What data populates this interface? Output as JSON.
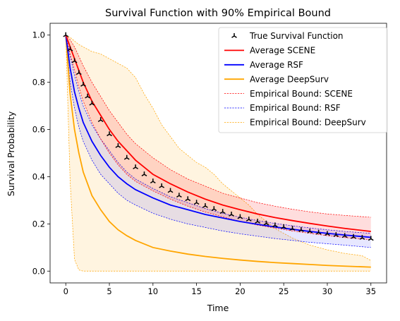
{
  "chart_data": {
    "type": "line",
    "title": "Survival Function with 90% Empirical Bound",
    "xlabel": "Time",
    "ylabel": "Survival Probability",
    "xlim": [
      -1.8,
      36.8
    ],
    "ylim": [
      -0.05,
      1.05
    ],
    "xticks": [
      0,
      5,
      10,
      15,
      20,
      25,
      30,
      35
    ],
    "yticks": [
      0.0,
      0.2,
      0.4,
      0.6,
      0.8,
      1.0
    ],
    "grid": false,
    "legend_position": "top-right",
    "legend": [
      "True Survival Function",
      "Average SCENE",
      "Average RSF",
      "Average DeepSurv",
      "Empirical Bound: SCENE",
      "Empirical Bound: RSF",
      "Empirical Bound: DeepSurv"
    ],
    "series": [
      {
        "name": "True Survival Function",
        "style": "markers",
        "color": "#000000",
        "x": [
          0,
          0.5,
          1,
          1.5,
          2,
          2.5,
          3,
          4,
          5,
          6,
          7,
          8,
          9,
          10,
          11,
          12,
          13,
          14,
          15,
          16,
          17,
          18,
          19,
          20,
          21,
          22,
          23,
          24,
          25,
          26,
          27,
          28,
          29,
          30,
          31,
          32,
          33,
          34,
          35
        ],
        "y": [
          1.0,
          0.94,
          0.89,
          0.84,
          0.79,
          0.74,
          0.71,
          0.64,
          0.58,
          0.53,
          0.48,
          0.44,
          0.41,
          0.38,
          0.36,
          0.34,
          0.32,
          0.305,
          0.29,
          0.276,
          0.263,
          0.251,
          0.24,
          0.229,
          0.219,
          0.21,
          0.202,
          0.194,
          0.187,
          0.18,
          0.174,
          0.168,
          0.163,
          0.158,
          0.153,
          0.149,
          0.145,
          0.141,
          0.137
        ]
      },
      {
        "name": "Average SCENE",
        "style": "line",
        "color": "#ff0000",
        "x": [
          0,
          0.5,
          1,
          1.5,
          2,
          2.5,
          3,
          4,
          5,
          6,
          7,
          8,
          9,
          10,
          12,
          14,
          16,
          18,
          20,
          22,
          24,
          26,
          28,
          30,
          32,
          35
        ],
        "y": [
          1.0,
          0.95,
          0.9,
          0.85,
          0.8,
          0.76,
          0.72,
          0.66,
          0.6,
          0.55,
          0.51,
          0.47,
          0.44,
          0.41,
          0.37,
          0.335,
          0.305,
          0.28,
          0.26,
          0.242,
          0.227,
          0.214,
          0.202,
          0.191,
          0.181,
          0.168
        ]
      },
      {
        "name": "Average RSF",
        "style": "line",
        "color": "#0000ff",
        "x": [
          0,
          0.5,
          1,
          1.5,
          2,
          3,
          4,
          5,
          6,
          7,
          8,
          10,
          12,
          14,
          16,
          18,
          20,
          22,
          24,
          26,
          28,
          30,
          32,
          35
        ],
        "y": [
          1.0,
          0.86,
          0.76,
          0.69,
          0.63,
          0.55,
          0.49,
          0.44,
          0.4,
          0.37,
          0.345,
          0.31,
          0.28,
          0.26,
          0.24,
          0.225,
          0.21,
          0.198,
          0.187,
          0.177,
          0.168,
          0.16,
          0.153,
          0.143
        ]
      },
      {
        "name": "Average DeepSurv",
        "style": "line",
        "color": "#ffa500",
        "x": [
          0,
          0.5,
          1,
          1.5,
          2,
          3,
          4,
          5,
          6,
          7,
          8,
          10,
          12,
          14,
          16,
          18,
          20,
          22,
          24,
          26,
          28,
          30,
          32,
          35
        ],
        "y": [
          1.0,
          0.75,
          0.6,
          0.5,
          0.42,
          0.32,
          0.26,
          0.21,
          0.175,
          0.15,
          0.13,
          0.1,
          0.085,
          0.072,
          0.062,
          0.054,
          0.047,
          0.041,
          0.036,
          0.032,
          0.028,
          0.024,
          0.021,
          0.017
        ]
      }
    ],
    "bounds": [
      {
        "name": "Empirical Bound: SCENE",
        "color": "#ff0000",
        "fill": "#ff000022",
        "x": [
          0,
          0.5,
          1,
          1.5,
          2,
          3,
          4,
          5,
          6,
          7,
          8,
          10,
          12,
          14,
          16,
          18,
          20,
          22,
          24,
          26,
          28,
          30,
          32,
          35
        ],
        "upper": [
          1.0,
          0.98,
          0.95,
          0.91,
          0.87,
          0.8,
          0.74,
          0.68,
          0.63,
          0.58,
          0.54,
          0.48,
          0.43,
          0.39,
          0.36,
          0.33,
          0.31,
          0.29,
          0.275,
          0.262,
          0.251,
          0.242,
          0.236,
          0.228
        ],
        "lower": [
          1.0,
          0.92,
          0.85,
          0.78,
          0.72,
          0.63,
          0.56,
          0.5,
          0.45,
          0.41,
          0.38,
          0.34,
          0.305,
          0.275,
          0.25,
          0.23,
          0.21,
          0.195,
          0.182,
          0.17,
          0.16,
          0.15,
          0.142,
          0.133
        ]
      },
      {
        "name": "Empirical Bound: RSF",
        "color": "#0000ff",
        "fill": "#0000ff18",
        "x": [
          0,
          0.5,
          1,
          1.5,
          2,
          3,
          4,
          5,
          6,
          7,
          8,
          10,
          12,
          14,
          16,
          18,
          20,
          22,
          24,
          26,
          28,
          30,
          32,
          35
        ],
        "upper": [
          1.0,
          0.91,
          0.83,
          0.76,
          0.7,
          0.62,
          0.56,
          0.51,
          0.46,
          0.42,
          0.39,
          0.35,
          0.315,
          0.29,
          0.265,
          0.245,
          0.228,
          0.214,
          0.202,
          0.192,
          0.183,
          0.175,
          0.168,
          0.16
        ],
        "lower": [
          1.0,
          0.8,
          0.69,
          0.61,
          0.55,
          0.47,
          0.41,
          0.37,
          0.33,
          0.3,
          0.28,
          0.245,
          0.22,
          0.2,
          0.185,
          0.17,
          0.158,
          0.148,
          0.138,
          0.13,
          0.122,
          0.116,
          0.11,
          0.1
        ]
      },
      {
        "name": "Empirical Bound: DeepSurv",
        "color": "#ffa500",
        "fill": "#ffa5001f",
        "x": [
          0,
          0.5,
          1,
          1.5,
          2,
          3,
          4,
          5,
          6,
          7,
          8,
          9,
          10,
          11,
          12,
          13,
          14,
          15,
          16,
          17,
          18,
          19,
          20,
          21,
          22,
          23,
          24,
          25,
          26,
          28,
          30,
          32,
          34,
          35
        ],
        "upper": [
          1.0,
          0.99,
          0.975,
          0.96,
          0.95,
          0.93,
          0.92,
          0.9,
          0.88,
          0.86,
          0.82,
          0.75,
          0.69,
          0.62,
          0.57,
          0.52,
          0.49,
          0.46,
          0.44,
          0.41,
          0.37,
          0.34,
          0.31,
          0.28,
          0.24,
          0.21,
          0.18,
          0.16,
          0.14,
          0.11,
          0.09,
          0.075,
          0.065,
          0.045
        ],
        "lower": [
          1.0,
          0.38,
          0.05,
          0.005,
          0.0,
          0.0,
          0.0,
          0.0,
          0.0,
          0.0,
          0.0,
          0.0,
          0.0,
          0.0,
          0.0,
          0.0,
          0.0,
          0.0,
          0.0,
          0.0,
          0.0,
          0.0,
          0.0,
          0.0,
          0.0,
          0.0,
          0.0,
          0.0,
          0.0,
          0.0,
          0.0,
          0.0,
          0.0,
          0.0
        ]
      }
    ]
  }
}
